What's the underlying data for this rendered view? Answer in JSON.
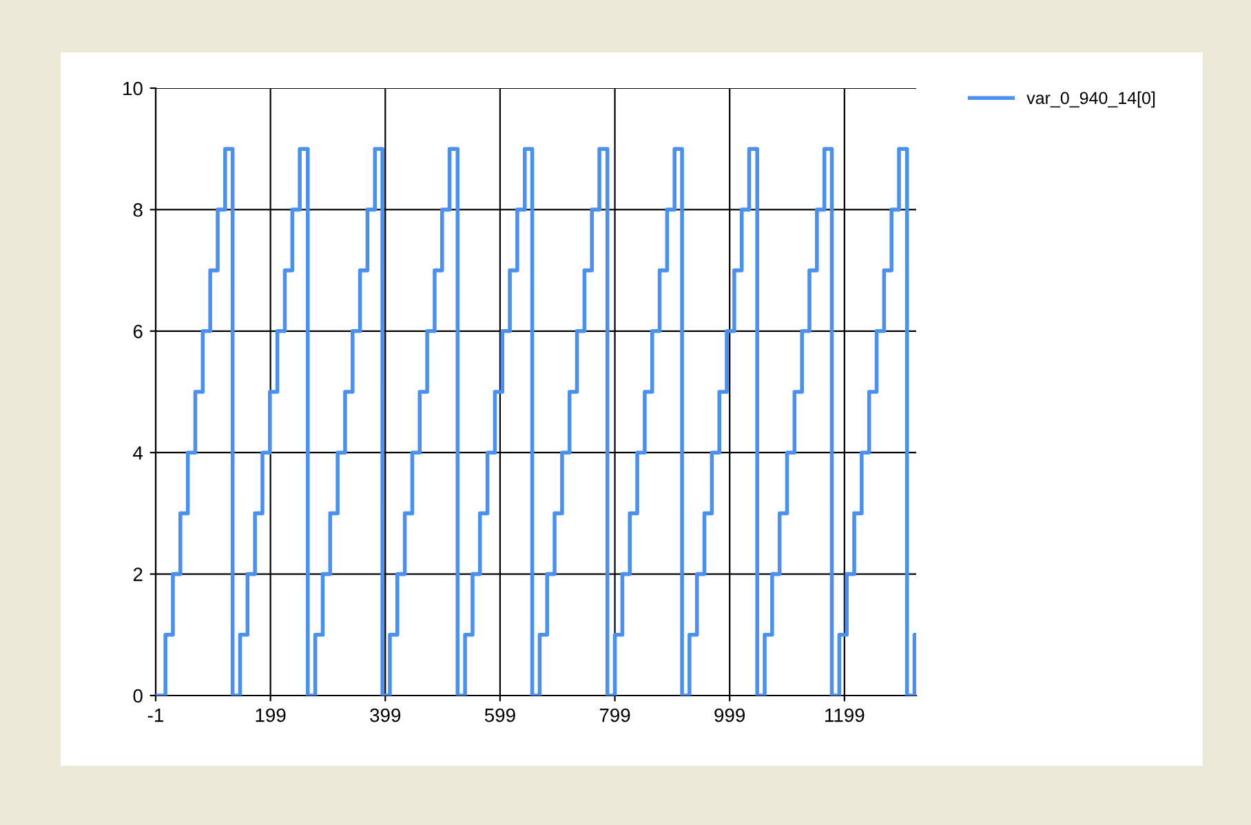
{
  "chart_data": {
    "type": "step",
    "x": [
      -1,
      16,
      29,
      42,
      55,
      68,
      81,
      94,
      107,
      120,
      133,
      146,
      159,
      172,
      185,
      198,
      211,
      224,
      237,
      250,
      264,
      277,
      290,
      303,
      316,
      329,
      342,
      355,
      368,
      381,
      394,
      407,
      420,
      433,
      446,
      459,
      472,
      485,
      498,
      511,
      525,
      538,
      551,
      564,
      577,
      590,
      603,
      616,
      629,
      642,
      655,
      668,
      681,
      694,
      707,
      720,
      733,
      746,
      759,
      772,
      786,
      799,
      812,
      825,
      838,
      851,
      864,
      877,
      890,
      903,
      916,
      929,
      942,
      955,
      968,
      981,
      994,
      1007,
      1020,
      1033,
      1047,
      1060,
      1073,
      1086,
      1099,
      1112,
      1125,
      1138,
      1151,
      1164,
      1177,
      1190,
      1203,
      1216,
      1229,
      1242,
      1255,
      1268,
      1281,
      1294,
      1308,
      1321,
      1324
    ],
    "series": [
      {
        "name": "var_0_940_14[0]",
        "color": "#4a90f0",
        "values": [
          0,
          1,
          2,
          3,
          4,
          5,
          6,
          7,
          8,
          9,
          0,
          1,
          2,
          3,
          4,
          5,
          6,
          7,
          8,
          9,
          0,
          1,
          2,
          3,
          4,
          5,
          6,
          7,
          8,
          9,
          0,
          1,
          2,
          3,
          4,
          5,
          6,
          7,
          8,
          9,
          0,
          1,
          2,
          3,
          4,
          5,
          6,
          7,
          8,
          9,
          0,
          1,
          2,
          3,
          4,
          5,
          6,
          7,
          8,
          9,
          0,
          1,
          2,
          3,
          4,
          5,
          6,
          7,
          8,
          9,
          0,
          1,
          2,
          3,
          4,
          5,
          6,
          7,
          8,
          9,
          0,
          1,
          2,
          3,
          4,
          5,
          6,
          7,
          8,
          9,
          0,
          1,
          2,
          3,
          4,
          5,
          6,
          7,
          8,
          9,
          0,
          1,
          1
        ]
      }
    ],
    "xlim": [
      -1,
      1324
    ],
    "xticks": [
      -1,
      199,
      399,
      599,
      799,
      999,
      1199
    ],
    "ylim": [
      0,
      10
    ],
    "yticks": [
      0,
      2,
      4,
      6,
      8,
      10
    ],
    "grid": true,
    "legend": "top right",
    "marker": "none",
    "line_style": "solid"
  }
}
